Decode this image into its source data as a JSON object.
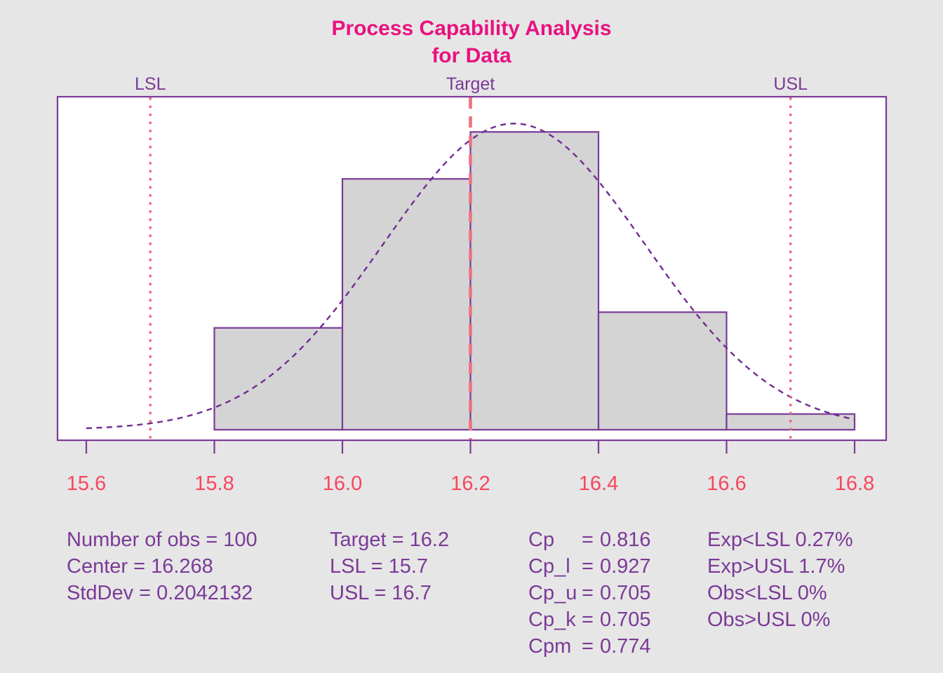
{
  "title": {
    "line1": "Process Capability Analysis",
    "line2": "for Data"
  },
  "chart_data": {
    "type": "histogram",
    "title": "Process Capability Analysis for Data",
    "xlim": [
      15.6,
      16.8
    ],
    "x_tick_labels": [
      "15.6",
      "15.8",
      "16.0",
      "16.2",
      "16.4",
      "16.6",
      "16.8"
    ],
    "x_tick_values": [
      15.6,
      15.8,
      16.0,
      16.2,
      16.4,
      16.6,
      16.8
    ],
    "bins": {
      "start": 15.8,
      "bin_width": 0.2,
      "counts": [
        13,
        32,
        38,
        15,
        2
      ]
    },
    "normal_curve": {
      "mean": 16.268,
      "sd": 0.2042132,
      "n_obs": 100,
      "bin_width": 0.2
    },
    "spec_lines": [
      {
        "id": "lsl",
        "label": "LSL",
        "value": 15.7,
        "style": "dotted"
      },
      {
        "id": "target",
        "label": "Target",
        "value": 16.2,
        "style": "dashed"
      },
      {
        "id": "usl",
        "label": "USL",
        "value": 16.7,
        "style": "dotted"
      }
    ],
    "grid": false,
    "legend": false
  },
  "stats": {
    "general": [
      "Number of obs = 100",
      "Center = 16.268",
      "StdDev = 0.2042132"
    ],
    "specs": [
      "Target = 16.2",
      "LSL = 15.7",
      "USL = 16.7"
    ],
    "capability": [
      {
        "label": "Cp",
        "equals": "=",
        "value": "0.816"
      },
      {
        "label": "Cp_l",
        "equals": "=",
        "value": "0.927"
      },
      {
        "label": "Cp_u",
        "equals": "=",
        "value": "0.705"
      },
      {
        "label": "Cp_k",
        "equals": "=",
        "value": "0.705"
      },
      {
        "label": "Cpm",
        "equals": "=",
        "value": "0.774"
      }
    ],
    "exp_obs": [
      "Exp<LSL 0.27%",
      "Exp>USL 1.7%",
      "Obs<LSL 0%",
      "Obs>USL 0%"
    ]
  },
  "colors": {
    "page_bg": "#E6E6E6",
    "plot_bg": "#FFFFFF",
    "frame_purple": "#7B3A97",
    "text_purple": "#7B3A97",
    "title_pink": "#E8127F",
    "tick_label_red": "#F8465E",
    "spec_line_red": "#EC6470",
    "target_line_red": "#EE7280",
    "curve_purple": "#722C91",
    "bar_fill": "#D4D4D4",
    "bar_stroke": "#7B3A97"
  }
}
